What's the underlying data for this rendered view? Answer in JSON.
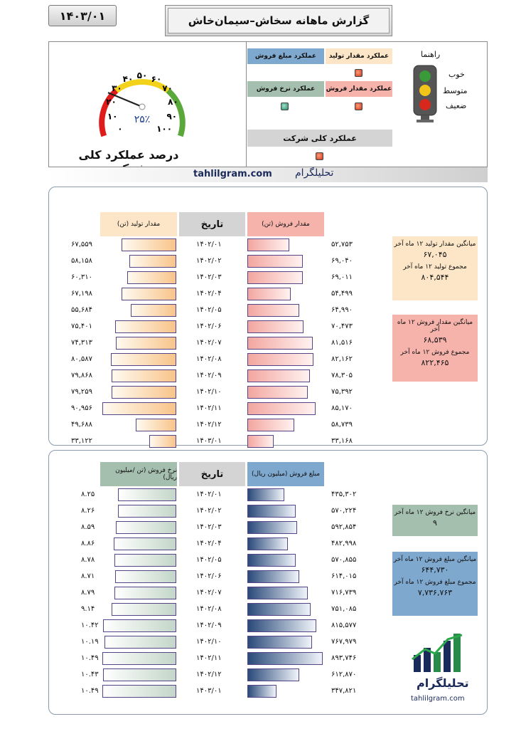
{
  "header": {
    "date": "۱۴۰۳/۰۱",
    "title": "گزارش ماهانه سخاش–سیمان‌خاش"
  },
  "performance": {
    "production_label": "عملکرد مقدار تولید",
    "sales_amount_label": "عملکرد مبلغ فروش",
    "sales_qty_label": "عملکرد مقدار فروش",
    "sales_rate_label": "عملکرد   نرخ فروش",
    "overall_label": "عملکرد کلی شرکت",
    "colors": {
      "production": "#fde6c8",
      "sales_amount": "#7fa8cf",
      "sales_qty": "#f5b3ac",
      "sales_rate": "#a5bfae",
      "overall": "#d4d4d4"
    },
    "lamps": {
      "production": "red",
      "sales_amount": "red",
      "sales_qty": "red",
      "sales_rate": "green",
      "overall": "red"
    }
  },
  "guide": {
    "title": "راهنما",
    "good": "خوب",
    "medium": "متوسط",
    "weak": "ضعیف",
    "icon": "traffic-light-icon"
  },
  "gauge": {
    "title": "درصد عملکرد کلی شرکت",
    "value_text": "۲۵٪",
    "value": 25,
    "ticks": [
      "۰",
      "۱۰",
      "۲۰",
      "۳۰",
      "۴۰",
      "۵۰",
      "۶۰",
      "۷۰",
      "۸۰",
      "۹۰",
      "۱۰۰"
    ]
  },
  "brand": {
    "en": "tahlilgram.com",
    "fa": "تحلیلگرام"
  },
  "section1": {
    "header_production": "مقدار تولید (تن)",
    "header_date": "تاریخ",
    "header_sales": "مقدار فروش (تن)",
    "rows": [
      {
        "date": "۱۴۰۲/۰۱",
        "production": 67559,
        "production_text": "۶۷,۵۵۹",
        "sales": 52753,
        "sales_text": "۵۲,۷۵۳"
      },
      {
        "date": "۱۴۰۲/۰۲",
        "production": 58158,
        "production_text": "۵۸,۱۵۸",
        "sales": 69040,
        "sales_text": "۶۹,۰۴۰"
      },
      {
        "date": "۱۴۰۲/۰۳",
        "production": 60310,
        "production_text": "۶۰,۳۱۰",
        "sales": 69011,
        "sales_text": "۶۹,۰۱۱"
      },
      {
        "date": "۱۴۰۲/۰۴",
        "production": 67198,
        "production_text": "۶۷,۱۹۸",
        "sales": 54499,
        "sales_text": "۵۴,۴۹۹"
      },
      {
        "date": "۱۴۰۲/۰۵",
        "production": 55684,
        "production_text": "۵۵,۶۸۴",
        "sales": 64990,
        "sales_text": "۶۴,۹۹۰"
      },
      {
        "date": "۱۴۰۲/۰۶",
        "production": 75401,
        "production_text": "۷۵,۴۰۱",
        "sales": 70473,
        "sales_text": "۷۰,۴۷۳"
      },
      {
        "date": "۱۴۰۲/۰۷",
        "production": 74313,
        "production_text": "۷۴,۳۱۳",
        "sales": 81516,
        "sales_text": "۸۱,۵۱۶"
      },
      {
        "date": "۱۴۰۲/۰۸",
        "production": 80587,
        "production_text": "۸۰,۵۸۷",
        "sales": 82162,
        "sales_text": "۸۲,۱۶۲"
      },
      {
        "date": "۱۴۰۲/۰۹",
        "production": 79868,
        "production_text": "۷۹,۸۶۸",
        "sales": 78305,
        "sales_text": "۷۸,۳۰۵"
      },
      {
        "date": "۱۴۰۲/۱۰",
        "production": 79259,
        "production_text": "۷۹,۲۵۹",
        "sales": 75392,
        "sales_text": "۷۵,۳۹۲"
      },
      {
        "date": "۱۴۰۲/۱۱",
        "production": 90956,
        "production_text": "۹۰,۹۵۶",
        "sales": 85170,
        "sales_text": "۸۵,۱۷۰"
      },
      {
        "date": "۱۴۰۲/۱۲",
        "production": 49688,
        "production_text": "۴۹,۶۸۸",
        "sales": 58739,
        "sales_text": "۵۸,۷۳۹"
      },
      {
        "date": "۱۴۰۳/۰۱",
        "production": 33122,
        "production_text": "۳۳,۱۲۲",
        "sales": 33168,
        "sales_text": "۳۳,۱۶۸"
      }
    ],
    "summary_production": {
      "avg_label": "میانگین مقدار تولید ۱۲ ماه آخر",
      "avg_value": "۶۷,۰۴۵",
      "sum_label": "مجموع تولید ۱۲ ماه آخر",
      "sum_value": "۸۰۴,۵۴۴"
    },
    "summary_sales": {
      "avg_label": "میانگین مقدار فروش ۱۲ ماه آخر",
      "avg_value": "۶۸,۵۳۹",
      "sum_label": "مجموع فروش ۱۲ ماه آخر",
      "sum_value": "۸۲۲,۴۶۵"
    }
  },
  "section2": {
    "header_rate": "نرخ فروش (تن /میلیون ریال)",
    "header_date": "تاریخ",
    "header_amount": "مبلغ فروش (میلیون ریال)",
    "rows": [
      {
        "date": "۱۴۰۲/۰۱",
        "rate": 8.25,
        "rate_text": "۸.۲۵",
        "amount": 435302,
        "amount_text": "۴۳۵,۳۰۲"
      },
      {
        "date": "۱۴۰۲/۰۲",
        "rate": 8.26,
        "rate_text": "۸.۲۶",
        "amount": 570224,
        "amount_text": "۵۷۰,۲۲۴"
      },
      {
        "date": "۱۴۰۲/۰۳",
        "rate": 8.59,
        "rate_text": "۸.۵۹",
        "amount": 592854,
        "amount_text": "۵۹۲,۸۵۴"
      },
      {
        "date": "۱۴۰۲/۰۴",
        "rate": 8.86,
        "rate_text": "۸.۸۶",
        "amount": 482998,
        "amount_text": "۴۸۲,۹۹۸"
      },
      {
        "date": "۱۴۰۲/۰۵",
        "rate": 8.78,
        "rate_text": "۸.۷۸",
        "amount": 570855,
        "amount_text": "۵۷۰,۸۵۵"
      },
      {
        "date": "۱۴۰۲/۰۶",
        "rate": 8.71,
        "rate_text": "۸.۷۱",
        "amount": 614015,
        "amount_text": "۶۱۴,۰۱۵"
      },
      {
        "date": "۱۴۰۲/۰۷",
        "rate": 8.79,
        "rate_text": "۸.۷۹",
        "amount": 716739,
        "amount_text": "۷۱۶,۷۳۹"
      },
      {
        "date": "۱۴۰۲/۰۸",
        "rate": 9.14,
        "rate_text": "۹.۱۴",
        "amount": 751085,
        "amount_text": "۷۵۱,۰۸۵"
      },
      {
        "date": "۱۴۰۲/۰۹",
        "rate": 10.42,
        "rate_text": "۱۰.۴۲",
        "amount": 815577,
        "amount_text": "۸۱۵,۵۷۷"
      },
      {
        "date": "۱۴۰۲/۱۰",
        "rate": 10.19,
        "rate_text": "۱۰.۱۹",
        "amount": 767979,
        "amount_text": "۷۶۷,۹۷۹"
      },
      {
        "date": "۱۴۰۲/۱۱",
        "rate": 10.49,
        "rate_text": "۱۰.۴۹",
        "amount": 893746,
        "amount_text": "۸۹۳,۷۴۶"
      },
      {
        "date": "۱۴۰۲/۱۲",
        "rate": 10.43,
        "rate_text": "۱۰.۴۳",
        "amount": 612870,
        "amount_text": "۶۱۲,۸۷۰"
      },
      {
        "date": "۱۴۰۳/۰۱",
        "rate": 10.49,
        "rate_text": "۱۰.۴۹",
        "amount": 347821,
        "amount_text": "۳۴۷,۸۲۱"
      }
    ],
    "summary_rate": {
      "avg_label": "میانگین نرخ فروش ۱۲ ماه آخر",
      "avg_value": "۹"
    },
    "summary_amount": {
      "avg_label": "میانگین مبلغ فروش ۱۲ ماه آخر",
      "avg_value": "۶۴۴,۷۳۰",
      "sum_label": "مجموع مبلغ فروش ۱۲ ماه آخر",
      "sum_value": "۷,۷۳۶,۷۶۳"
    }
  },
  "logo": {
    "text": "تحلیلگرام",
    "url": "tahlilgram.com",
    "icon": "bar-chart-arrow-icon"
  }
}
